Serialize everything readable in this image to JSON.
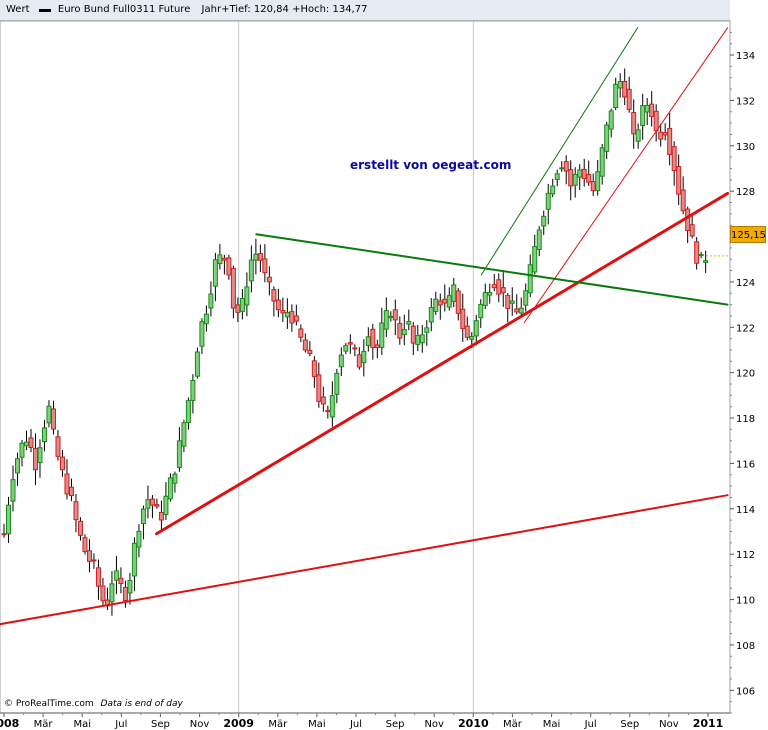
{
  "header": {
    "series_label": "Wert",
    "instrument": "Euro Bund Full0311 Future",
    "range_text": "Jahr+Tief: 120,84 +Hoch: 134,77"
  },
  "footer": {
    "source": "© ProRealTime.com",
    "note": "Data is end of day"
  },
  "watermark": "erstellt von oegeat.com",
  "last_price_label": "125,15",
  "colors": {
    "up": "#1a8a1a",
    "down": "#cc2020",
    "up_fill": "#7fcf7f",
    "down_fill": "#e08a8a",
    "trend_red": "#e01010",
    "trend_green": "#0a7a0a",
    "grid": "#c8c8c8",
    "badge": "#f2a900"
  },
  "chart_data": {
    "type": "candlestick",
    "title": "Euro Bund Full0311 Future",
    "x_axis": {
      "start": "2008-01",
      "end": "2011-01",
      "ticks": [
        {
          "label": "2008",
          "month": 0,
          "major": true
        },
        {
          "label": "Mär",
          "month": 2
        },
        {
          "label": "Mai",
          "month": 4
        },
        {
          "label": "Jul",
          "month": 6
        },
        {
          "label": "Sep",
          "month": 8
        },
        {
          "label": "Nov",
          "month": 10
        },
        {
          "label": "2009",
          "month": 12,
          "major": true
        },
        {
          "label": "Mär",
          "month": 14
        },
        {
          "label": "Mai",
          "month": 16
        },
        {
          "label": "Jul",
          "month": 18
        },
        {
          "label": "Sep",
          "month": 20
        },
        {
          "label": "Nov",
          "month": 22
        },
        {
          "label": "2010",
          "month": 24,
          "major": true
        },
        {
          "label": "Mär",
          "month": 26
        },
        {
          "label": "Mai",
          "month": 28
        },
        {
          "label": "Jul",
          "month": 30
        },
        {
          "label": "Sep",
          "month": 32
        },
        {
          "label": "Nov",
          "month": 34
        },
        {
          "label": "2011",
          "month": 36,
          "major": true
        }
      ]
    },
    "y_axis": {
      "ylim": [
        105,
        135.5
      ],
      "ticks": [
        106,
        108,
        110,
        112,
        114,
        116,
        118,
        120,
        122,
        124,
        126,
        128,
        130,
        132,
        134
      ]
    },
    "grid": true,
    "last_value": 125.15,
    "price_path": [
      [
        0.0,
        112.9
      ],
      [
        0.4,
        115.4
      ],
      [
        0.8,
        116.6
      ],
      [
        1.2,
        117.2
      ],
      [
        1.6,
        116.0
      ],
      [
        2.0,
        117.6
      ],
      [
        2.3,
        118.4
      ],
      [
        2.6,
        116.8
      ],
      [
        3.0,
        115.5
      ],
      [
        3.4,
        114.5
      ],
      [
        3.8,
        113.0
      ],
      [
        4.2,
        112.0
      ],
      [
        4.6,
        111.4
      ],
      [
        5.0,
        110.0
      ],
      [
        5.3,
        109.9
      ],
      [
        5.6,
        111.2
      ],
      [
        6.0,
        110.5
      ],
      [
        6.3,
        110.2
      ],
      [
        6.6,
        112.0
      ],
      [
        7.0,
        113.8
      ],
      [
        7.4,
        114.5
      ],
      [
        7.7,
        114.0
      ],
      [
        8.0,
        113.6
      ],
      [
        8.4,
        114.8
      ],
      [
        8.8,
        116.0
      ],
      [
        9.2,
        117.8
      ],
      [
        9.6,
        119.5
      ],
      [
        10.0,
        121.8
      ],
      [
        10.4,
        123.0
      ],
      [
        10.8,
        124.8
      ],
      [
        11.2,
        125.2
      ],
      [
        11.5,
        124.6
      ],
      [
        11.8,
        122.5
      ],
      [
        12.2,
        123.0
      ],
      [
        12.6,
        124.9
      ],
      [
        13.0,
        125.4
      ],
      [
        13.4,
        124.0
      ],
      [
        13.8,
        123.2
      ],
      [
        14.2,
        122.4
      ],
      [
        14.6,
        122.8
      ],
      [
        15.0,
        121.8
      ],
      [
        15.4,
        121.0
      ],
      [
        15.8,
        120.2
      ],
      [
        16.2,
        118.5
      ],
      [
        16.6,
        118.0
      ],
      [
        17.0,
        120.2
      ],
      [
        17.4,
        121.4
      ],
      [
        17.8,
        121.0
      ],
      [
        18.2,
        120.4
      ],
      [
        18.6,
        122.0
      ],
      [
        19.0,
        120.8
      ],
      [
        19.4,
        122.2
      ],
      [
        19.8,
        122.8
      ],
      [
        20.2,
        121.6
      ],
      [
        20.6,
        122.4
      ],
      [
        21.0,
        121.0
      ],
      [
        21.4,
        121.8
      ],
      [
        21.8,
        122.6
      ],
      [
        22.2,
        123.4
      ],
      [
        22.6,
        122.8
      ],
      [
        23.0,
        123.6
      ],
      [
        23.4,
        122.2
      ],
      [
        23.8,
        121.2
      ],
      [
        24.2,
        122.6
      ],
      [
        24.6,
        123.4
      ],
      [
        25.0,
        124.2
      ],
      [
        25.4,
        123.6
      ],
      [
        25.8,
        123.0
      ],
      [
        26.2,
        122.6
      ],
      [
        26.6,
        123.2
      ],
      [
        27.0,
        124.8
      ],
      [
        27.4,
        126.6
      ],
      [
        27.8,
        127.8
      ],
      [
        28.2,
        128.9
      ],
      [
        28.6,
        129.4
      ],
      [
        29.0,
        128.2
      ],
      [
        29.4,
        129.0
      ],
      [
        29.8,
        128.6
      ],
      [
        30.2,
        127.9
      ],
      [
        30.6,
        129.8
      ],
      [
        31.0,
        131.5
      ],
      [
        31.4,
        133.0
      ],
      [
        31.8,
        132.4
      ],
      [
        32.2,
        130.2
      ],
      [
        32.6,
        131.4
      ],
      [
        33.0,
        132.0
      ],
      [
        33.4,
        130.4
      ],
      [
        33.8,
        130.8
      ],
      [
        34.2,
        129.4
      ],
      [
        34.6,
        127.6
      ],
      [
        35.0,
        126.4
      ],
      [
        35.3,
        125.4
      ],
      [
        35.6,
        124.8
      ],
      [
        35.9,
        125.15
      ]
    ],
    "trendlines": [
      {
        "color": "red",
        "width": 2,
        "from": [
          -0.3,
          108.9
        ],
        "to": [
          37.0,
          114.6
        ]
      },
      {
        "color": "red",
        "width": 3,
        "from": [
          7.8,
          112.9
        ],
        "to": [
          37.0,
          127.9
        ]
      },
      {
        "color": "red",
        "width": 1,
        "from": [
          26.6,
          122.2
        ],
        "to": [
          37.0,
          135.2
        ]
      },
      {
        "color": "green",
        "width": 2,
        "from": [
          12.9,
          126.1
        ],
        "to": [
          37.0,
          123.0
        ]
      },
      {
        "color": "green",
        "width": 1,
        "from": [
          24.4,
          124.3
        ],
        "to": [
          32.4,
          135.2
        ]
      }
    ]
  }
}
